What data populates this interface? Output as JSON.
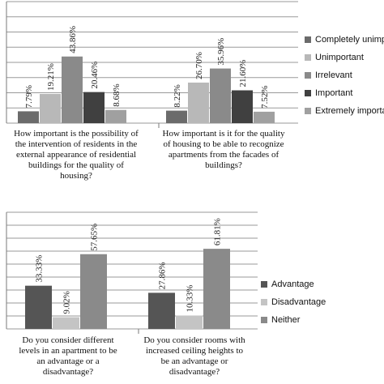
{
  "chart_data": [
    {
      "type": "bar",
      "categories": [
        [
          "How important is the possibility of",
          "the intervention of residents in the",
          "external appearance of residential",
          "buildings for the quality of",
          "housing?"
        ],
        [
          "How important is it for the quality",
          "of housing to be able to recognize",
          "apartments from the facades of",
          "buildings?"
        ]
      ],
      "series": [
        {
          "name": "Completely unimportant",
          "values": [
            7.79,
            8.22
          ],
          "labels": [
            "7.79%",
            "8.22%"
          ],
          "color": "#6b6b6b"
        },
        {
          "name": "Unimportant",
          "values": [
            19.21,
            26.7
          ],
          "labels": [
            "19.21%",
            "26.70%"
          ],
          "color": "#b8b8b8"
        },
        {
          "name": "Irrelevant",
          "values": [
            43.86,
            35.96
          ],
          "labels": [
            "43.86%",
            "35.96%"
          ],
          "color": "#8a8a8a"
        },
        {
          "name": "Important",
          "values": [
            20.46,
            21.6
          ],
          "labels": [
            "20.46%",
            "21.60%"
          ],
          "color": "#404040"
        },
        {
          "name": "Extremely important",
          "values": [
            8.68,
            7.52
          ],
          "labels": [
            "8.68%",
            "7.52%"
          ],
          "color": "#a0a0a0"
        }
      ],
      "ylim": [
        0,
        80
      ],
      "grid": true,
      "legend": "right"
    },
    {
      "type": "bar",
      "categories": [
        [
          "Do you consider different",
          "levels in an apartment to be",
          "an advantage or a",
          "disadvantage?"
        ],
        [
          "Do you consider rooms with",
          "increased ceiling heights to",
          "be an advantage or",
          "disadvantage?"
        ]
      ],
      "series": [
        {
          "name": "Advantage",
          "values": [
            33.33,
            27.86
          ],
          "labels": [
            "33.33%",
            "27.86%"
          ],
          "color": "#555555"
        },
        {
          "name": "Disadvantage",
          "values": [
            9.02,
            10.33
          ],
          "labels": [
            "9.02%",
            "10.33%"
          ],
          "color": "#c4c4c4"
        },
        {
          "name": "Neither",
          "values": [
            57.65,
            61.81
          ],
          "labels": [
            "57.65%",
            "61.81%"
          ],
          "color": "#8a8a8a"
        }
      ],
      "ylim": [
        0,
        90
      ],
      "grid": true,
      "legend": "right"
    }
  ]
}
